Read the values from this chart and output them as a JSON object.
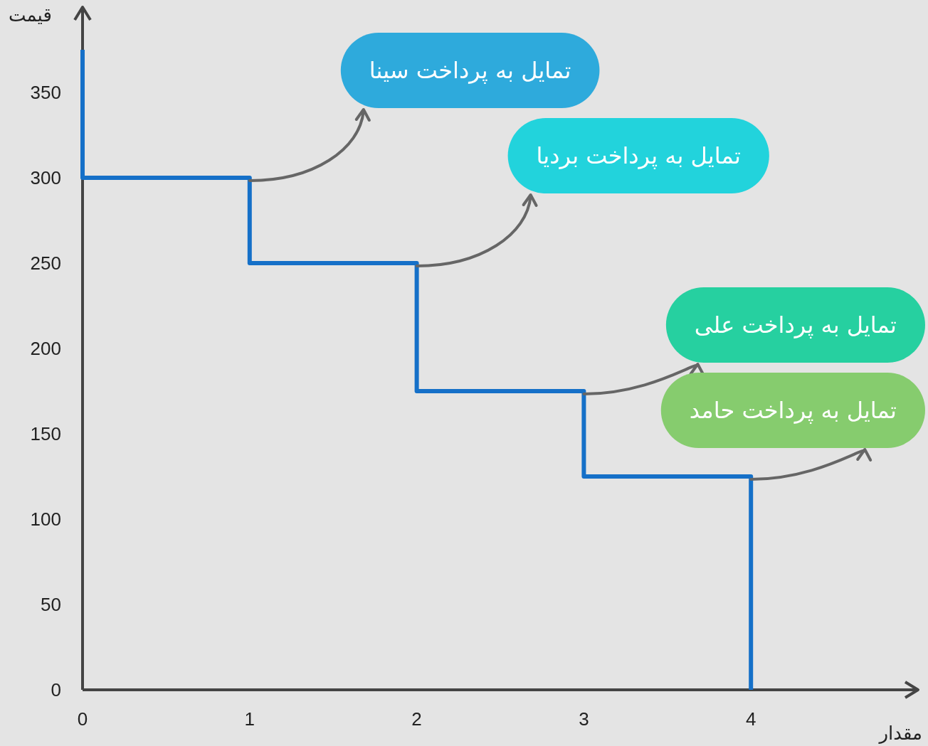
{
  "chart_data": {
    "type": "line",
    "xlabel": "مقدار",
    "ylabel": "قیمت",
    "x": [
      0,
      0,
      1,
      1,
      2,
      2,
      3,
      3,
      4,
      4
    ],
    "series": [
      {
        "color": "#1570c8",
        "values": [
          375,
          300,
          300,
          250,
          250,
          175,
          175,
          125,
          125,
          0
        ]
      }
    ],
    "xlim": [
      0,
      5
    ],
    "ylim": [
      0,
      400
    ],
    "xticks": [
      0,
      1,
      2,
      3,
      4
    ],
    "yticks": [
      0,
      50,
      100,
      150,
      200,
      250,
      300,
      350
    ],
    "grid": false,
    "line_style": "solid",
    "annotations": [
      {
        "text": "تمایل به پرداخت سینا",
        "x": 1,
        "y": 300
      },
      {
        "text": "تمایل به پرداخت بردیا",
        "x": 2,
        "y": 250
      },
      {
        "text": "تمایل به پرداخت علی",
        "x": 3,
        "y": 175
      },
      {
        "text": "تمایل به پرداخت حامد",
        "x": 4,
        "y": 125
      }
    ]
  }
}
